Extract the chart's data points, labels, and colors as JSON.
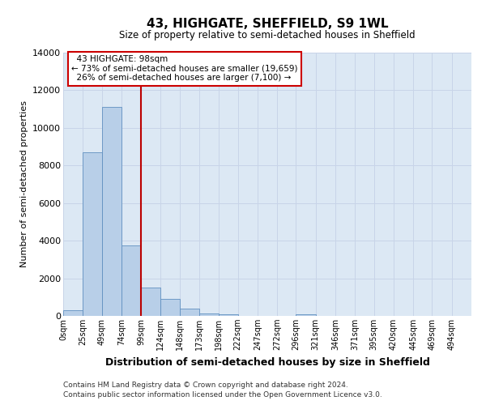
{
  "title": "43, HIGHGATE, SHEFFIELD, S9 1WL",
  "subtitle": "Size of property relative to semi-detached houses in Sheffield",
  "bar_labels": [
    "0sqm",
    "25sqm",
    "49sqm",
    "74sqm",
    "99sqm",
    "124sqm",
    "148sqm",
    "173sqm",
    "198sqm",
    "222sqm",
    "247sqm",
    "272sqm",
    "296sqm",
    "321sqm",
    "346sqm",
    "371sqm",
    "395sqm",
    "420sqm",
    "445sqm",
    "469sqm",
    "494sqm"
  ],
  "bar_values": [
    300,
    8700,
    11100,
    3750,
    1500,
    900,
    400,
    150,
    100,
    0,
    0,
    0,
    100,
    0,
    0,
    0,
    0,
    0,
    0,
    0,
    0
  ],
  "bin_edges": [
    0,
    25,
    49,
    74,
    99,
    124,
    148,
    173,
    198,
    222,
    247,
    272,
    296,
    321,
    346,
    371,
    395,
    420,
    445,
    469,
    494,
    519
  ],
  "bar_color": "#b8cfe8",
  "bar_edge_color": "#6090c0",
  "vline_x": 99,
  "vline_color": "#bb0000",
  "ylabel": "Number of semi-detached properties",
  "xlabel": "Distribution of semi-detached houses by size in Sheffield",
  "ylim": [
    0,
    14000
  ],
  "yticks": [
    0,
    2000,
    4000,
    6000,
    8000,
    10000,
    12000,
    14000
  ],
  "annotation_title": "43 HIGHGATE: 98sqm",
  "annotation_line1": "← 73% of semi-detached houses are smaller (19,659)",
  "annotation_line2": "26% of semi-detached houses are larger (7,100) →",
  "annotation_box_color": "#ffffff",
  "annotation_box_edge": "#cc0000",
  "footer1": "Contains HM Land Registry data © Crown copyright and database right 2024.",
  "footer2": "Contains public sector information licensed under the Open Government Licence v3.0.",
  "grid_color": "#c8d4e8",
  "background_color": "#dce8f4"
}
